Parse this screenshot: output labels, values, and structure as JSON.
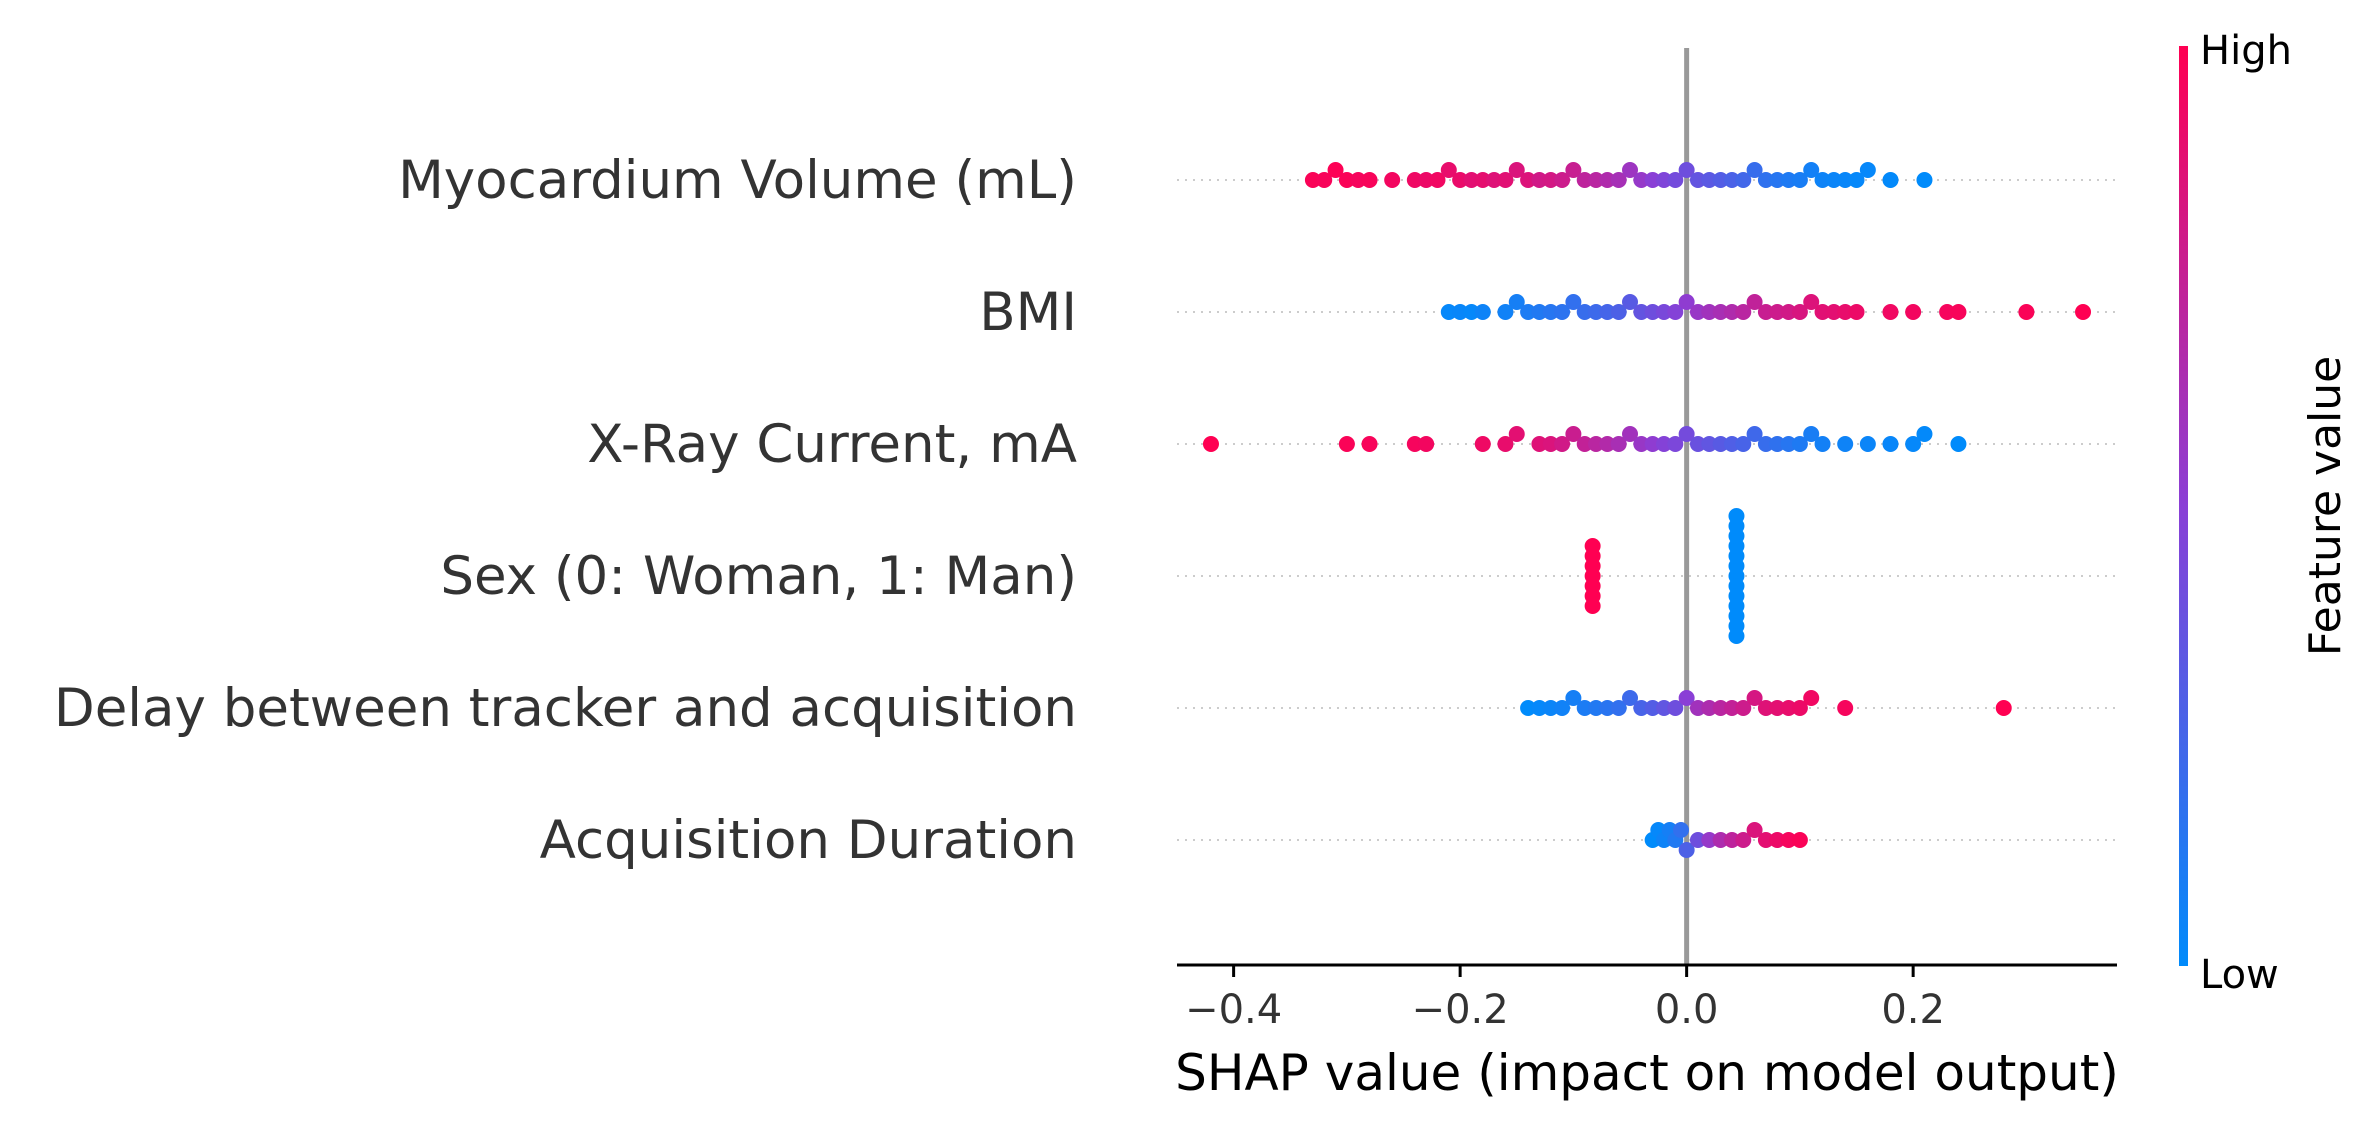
{
  "chart_data": {
    "type": "scatter",
    "subtype": "beeswarm",
    "title": "",
    "xlabel": "SHAP value (impact on model output)",
    "ylabel": "",
    "xlim": [
      -0.45,
      0.38
    ],
    "xticks": [
      -0.4,
      -0.2,
      0.0,
      0.2
    ],
    "xtick_labels": [
      "−0.4",
      "−0.2",
      "0.0",
      "0.2"
    ],
    "grid": false,
    "colorbar": {
      "title": "Feature value",
      "high_label": "High",
      "low_label": "Low",
      "high_color": "#ff0052",
      "low_color": "#008bfb"
    },
    "features": [
      {
        "name": "Myocardium Volume (mL)",
        "points": [
          [
            -0.33,
            0.98
          ],
          [
            -0.32,
            0.97
          ],
          [
            -0.31,
            0.99
          ],
          [
            -0.3,
            0.98
          ],
          [
            -0.29,
            0.96
          ],
          [
            -0.28,
            0.97
          ],
          [
            -0.26,
            0.95
          ],
          [
            -0.24,
            0.93
          ],
          [
            -0.23,
            0.92
          ],
          [
            -0.22,
            0.94
          ],
          [
            -0.21,
            0.9
          ],
          [
            -0.2,
            0.91
          ],
          [
            -0.19,
            0.88
          ],
          [
            -0.18,
            0.89
          ],
          [
            -0.17,
            0.86
          ],
          [
            -0.16,
            0.87
          ],
          [
            -0.15,
            0.84
          ],
          [
            -0.14,
            0.85
          ],
          [
            -0.13,
            0.8
          ],
          [
            -0.12,
            0.81
          ],
          [
            -0.11,
            0.78
          ],
          [
            -0.1,
            0.76
          ],
          [
            -0.09,
            0.72
          ],
          [
            -0.08,
            0.7
          ],
          [
            -0.07,
            0.66
          ],
          [
            -0.06,
            0.62
          ],
          [
            -0.05,
            0.58
          ],
          [
            -0.04,
            0.55
          ],
          [
            -0.03,
            0.5
          ],
          [
            -0.02,
            0.46
          ],
          [
            -0.01,
            0.42
          ],
          [
            0.0,
            0.4
          ],
          [
            0.01,
            0.36
          ],
          [
            0.02,
            0.33
          ],
          [
            0.03,
            0.3
          ],
          [
            0.04,
            0.27
          ],
          [
            0.05,
            0.24
          ],
          [
            0.06,
            0.2
          ],
          [
            0.07,
            0.17
          ],
          [
            0.08,
            0.14
          ],
          [
            0.09,
            0.11
          ],
          [
            0.1,
            0.09
          ],
          [
            0.11,
            0.07
          ],
          [
            0.12,
            0.05
          ],
          [
            0.13,
            0.04
          ],
          [
            0.14,
            0.03
          ],
          [
            0.15,
            0.02
          ],
          [
            0.16,
            0.02
          ],
          [
            0.18,
            0.01
          ],
          [
            0.21,
            0.0
          ]
        ]
      },
      {
        "name": "BMI",
        "points": [
          [
            -0.21,
            0.02
          ],
          [
            -0.2,
            0.03
          ],
          [
            -0.19,
            0.02
          ],
          [
            -0.18,
            0.05
          ],
          [
            -0.16,
            0.06
          ],
          [
            -0.15,
            0.08
          ],
          [
            -0.14,
            0.1
          ],
          [
            -0.13,
            0.12
          ],
          [
            -0.12,
            0.14
          ],
          [
            -0.11,
            0.16
          ],
          [
            -0.1,
            0.18
          ],
          [
            -0.09,
            0.2
          ],
          [
            -0.08,
            0.22
          ],
          [
            -0.07,
            0.25
          ],
          [
            -0.06,
            0.28
          ],
          [
            -0.05,
            0.32
          ],
          [
            -0.04,
            0.36
          ],
          [
            -0.03,
            0.4
          ],
          [
            -0.02,
            0.44
          ],
          [
            -0.01,
            0.48
          ],
          [
            0.0,
            0.52
          ],
          [
            0.01,
            0.56
          ],
          [
            0.02,
            0.6
          ],
          [
            0.03,
            0.63
          ],
          [
            0.04,
            0.66
          ],
          [
            0.05,
            0.7
          ],
          [
            0.06,
            0.73
          ],
          [
            0.07,
            0.76
          ],
          [
            0.08,
            0.78
          ],
          [
            0.09,
            0.8
          ],
          [
            0.1,
            0.83
          ],
          [
            0.11,
            0.85
          ],
          [
            0.12,
            0.87
          ],
          [
            0.13,
            0.88
          ],
          [
            0.14,
            0.9
          ],
          [
            0.15,
            0.92
          ],
          [
            0.18,
            0.94
          ],
          [
            0.2,
            0.95
          ],
          [
            0.23,
            0.96
          ],
          [
            0.24,
            0.97
          ],
          [
            0.3,
            0.98
          ],
          [
            0.35,
            1.0
          ]
        ]
      },
      {
        "name": "X-Ray Current, mA",
        "points": [
          [
            -0.42,
            1.0
          ],
          [
            -0.3,
            0.98
          ],
          [
            -0.28,
            0.97
          ],
          [
            -0.24,
            0.96
          ],
          [
            -0.23,
            0.95
          ],
          [
            -0.18,
            0.93
          ],
          [
            -0.16,
            0.9
          ],
          [
            -0.15,
            0.88
          ],
          [
            -0.13,
            0.86
          ],
          [
            -0.12,
            0.84
          ],
          [
            -0.11,
            0.8
          ],
          [
            -0.1,
            0.77
          ],
          [
            -0.09,
            0.74
          ],
          [
            -0.08,
            0.7
          ],
          [
            -0.07,
            0.67
          ],
          [
            -0.06,
            0.63
          ],
          [
            -0.05,
            0.6
          ],
          [
            -0.04,
            0.56
          ],
          [
            -0.03,
            0.52
          ],
          [
            -0.02,
            0.48
          ],
          [
            -0.01,
            0.45
          ],
          [
            0.0,
            0.42
          ],
          [
            0.01,
            0.38
          ],
          [
            0.02,
            0.35
          ],
          [
            0.03,
            0.32
          ],
          [
            0.04,
            0.29
          ],
          [
            0.05,
            0.26
          ],
          [
            0.06,
            0.23
          ],
          [
            0.07,
            0.2
          ],
          [
            0.08,
            0.17
          ],
          [
            0.09,
            0.14
          ],
          [
            0.1,
            0.11
          ],
          [
            0.11,
            0.09
          ],
          [
            0.12,
            0.07
          ],
          [
            0.14,
            0.05
          ],
          [
            0.16,
            0.04
          ],
          [
            0.18,
            0.03
          ],
          [
            0.2,
            0.02
          ],
          [
            0.21,
            0.01
          ],
          [
            0.24,
            0.0
          ]
        ]
      },
      {
        "name": "Sex (0: Woman, 1: Man)",
        "points": [
          [
            -0.083,
            1.0
          ],
          [
            -0.083,
            1.0
          ],
          [
            -0.083,
            1.0
          ],
          [
            -0.083,
            1.0
          ],
          [
            -0.083,
            1.0
          ],
          [
            -0.083,
            1.0
          ],
          [
            -0.083,
            1.0
          ],
          [
            0.044,
            0.0
          ],
          [
            0.044,
            0.0
          ],
          [
            0.044,
            0.0
          ],
          [
            0.044,
            0.0
          ],
          [
            0.044,
            0.0
          ],
          [
            0.044,
            0.0
          ],
          [
            0.044,
            0.0
          ],
          [
            0.044,
            0.0
          ],
          [
            0.044,
            0.0
          ],
          [
            0.044,
            0.0
          ],
          [
            0.044,
            0.0
          ],
          [
            0.044,
            0.0
          ],
          [
            0.044,
            0.0
          ]
        ]
      },
      {
        "name": "Delay between tracker and acquisition",
        "points": [
          [
            -0.14,
            0.0
          ],
          [
            -0.13,
            0.02
          ],
          [
            -0.12,
            0.04
          ],
          [
            -0.11,
            0.06
          ],
          [
            -0.1,
            0.08
          ],
          [
            -0.09,
            0.1
          ],
          [
            -0.08,
            0.12
          ],
          [
            -0.07,
            0.15
          ],
          [
            -0.06,
            0.18
          ],
          [
            -0.05,
            0.22
          ],
          [
            -0.04,
            0.26
          ],
          [
            -0.03,
            0.3
          ],
          [
            -0.02,
            0.35
          ],
          [
            -0.01,
            0.4
          ],
          [
            0.0,
            0.5
          ],
          [
            0.01,
            0.6
          ],
          [
            0.02,
            0.65
          ],
          [
            0.03,
            0.7
          ],
          [
            0.04,
            0.74
          ],
          [
            0.05,
            0.78
          ],
          [
            0.06,
            0.82
          ],
          [
            0.07,
            0.86
          ],
          [
            0.08,
            0.88
          ],
          [
            0.09,
            0.9
          ],
          [
            0.1,
            0.92
          ],
          [
            0.11,
            0.94
          ],
          [
            0.14,
            0.96
          ],
          [
            0.28,
            1.0
          ]
        ]
      },
      {
        "name": "Acquisition Duration",
        "points": [
          [
            -0.03,
            0.0
          ],
          [
            -0.025,
            0.02
          ],
          [
            -0.02,
            0.05
          ],
          [
            -0.015,
            0.08
          ],
          [
            -0.01,
            0.12
          ],
          [
            -0.005,
            0.18
          ],
          [
            0.0,
            0.28
          ],
          [
            0.01,
            0.4
          ],
          [
            0.02,
            0.55
          ],
          [
            0.03,
            0.65
          ],
          [
            0.04,
            0.72
          ],
          [
            0.05,
            0.78
          ],
          [
            0.06,
            0.84
          ],
          [
            0.07,
            0.88
          ],
          [
            0.08,
            0.92
          ],
          [
            0.09,
            0.96
          ],
          [
            0.1,
            0.98
          ]
        ]
      }
    ]
  }
}
